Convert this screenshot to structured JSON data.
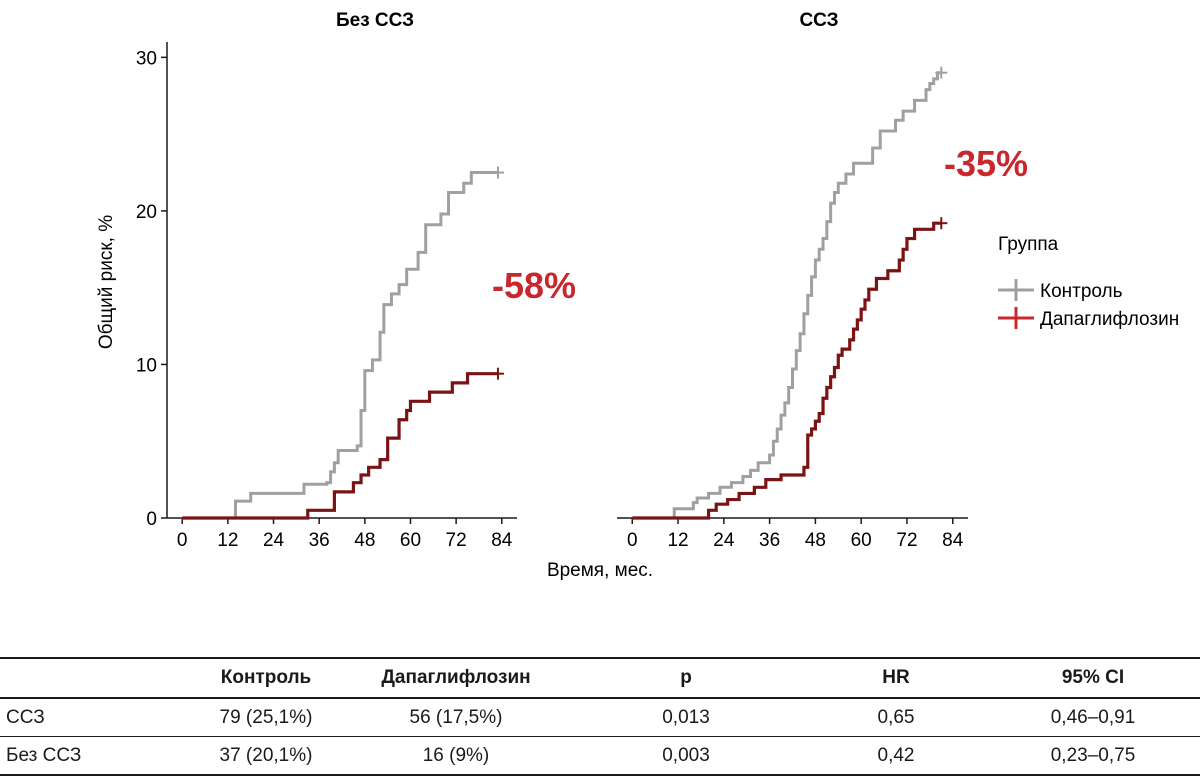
{
  "chart_data": {
    "type": "line",
    "subtype": "kaplan-meier step plot",
    "ylabel": "Общий риск, %",
    "xlabel": "Время, мес.",
    "ylim": [
      0,
      31
    ],
    "xlim": [
      -4,
      88
    ],
    "x_ticks": [
      0,
      12,
      24,
      36,
      48,
      60,
      72,
      84
    ],
    "y_ticks": [
      0,
      10,
      20,
      30
    ],
    "grid": false,
    "legend": {
      "title": "Группа",
      "position": "right",
      "entries": [
        {
          "label": "Контроль",
          "color": "#a0a0a0"
        },
        {
          "label": "Дапаглифлозин",
          "color": "#c8282d"
        }
      ]
    },
    "colors": {
      "control": "#a0a0a0",
      "treatment": "#7a1414",
      "annotation": "#c8282d"
    },
    "panels": [
      {
        "title": "Без ССЗ",
        "annotation": "-58%",
        "series": [
          {
            "name": "Контроль",
            "color": "#a0a0a0",
            "points": [
              [
                0,
                0
              ],
              [
                14,
                1.1
              ],
              [
                18,
                1.6
              ],
              [
                32,
                2.2
              ],
              [
                38,
                2.3
              ],
              [
                39,
                3.0
              ],
              [
                40,
                3.6
              ],
              [
                41,
                4.4
              ],
              [
                46,
                4.7
              ],
              [
                47,
                7.0
              ],
              [
                48,
                9.6
              ],
              [
                50,
                10.3
              ],
              [
                52,
                12.1
              ],
              [
                53,
                13.9
              ],
              [
                55,
                14.6
              ],
              [
                57,
                15.2
              ],
              [
                59,
                16.2
              ],
              [
                62,
                17.3
              ],
              [
                64,
                19.1
              ],
              [
                68,
                19.8
              ],
              [
                70,
                21.2
              ],
              [
                74,
                21.8
              ],
              [
                76,
                22.5
              ],
              [
                83,
                22.5
              ]
            ]
          },
          {
            "name": "Дапаглифлозин",
            "color": "#7a1414",
            "points": [
              [
                0,
                0
              ],
              [
                33,
                0.5
              ],
              [
                40,
                1.7
              ],
              [
                45,
                2.3
              ],
              [
                47,
                2.8
              ],
              [
                49,
                3.3
              ],
              [
                52,
                3.8
              ],
              [
                54,
                5.2
              ],
              [
                57,
                6.4
              ],
              [
                59,
                7.0
              ],
              [
                60,
                7.6
              ],
              [
                65,
                8.2
              ],
              [
                71,
                8.8
              ],
              [
                75,
                9.4
              ],
              [
                83,
                9.4
              ]
            ]
          }
        ]
      },
      {
        "title": "ССЗ",
        "annotation": "-35%",
        "series": [
          {
            "name": "Контроль",
            "color": "#a0a0a0",
            "points": [
              [
                0,
                0
              ],
              [
                11,
                0.6
              ],
              [
                16,
                1.0
              ],
              [
                17,
                1.3
              ],
              [
                20,
                1.6
              ],
              [
                23,
                2.0
              ],
              [
                26,
                2.3
              ],
              [
                29,
                2.7
              ],
              [
                31,
                3.1
              ],
              [
                33,
                3.6
              ],
              [
                36,
                4.1
              ],
              [
                37,
                5.0
              ],
              [
                38,
                5.8
              ],
              [
                39,
                6.7
              ],
              [
                40,
                7.5
              ],
              [
                41,
                8.5
              ],
              [
                42,
                9.7
              ],
              [
                43,
                10.9
              ],
              [
                44,
                12.0
              ],
              [
                45,
                13.3
              ],
              [
                46,
                14.5
              ],
              [
                47,
                15.7
              ],
              [
                48,
                16.8
              ],
              [
                49,
                17.5
              ],
              [
                50,
                18.2
              ],
              [
                51,
                19.3
              ],
              [
                52,
                20.5
              ],
              [
                53,
                21.2
              ],
              [
                54,
                21.8
              ],
              [
                56,
                22.4
              ],
              [
                58,
                23.1
              ],
              [
                63,
                24.1
              ],
              [
                65,
                25.2
              ],
              [
                69,
                25.9
              ],
              [
                71,
                26.5
              ],
              [
                74,
                27.2
              ],
              [
                77,
                27.9
              ],
              [
                78,
                28.3
              ],
              [
                79,
                28.6
              ],
              [
                80,
                29.0
              ],
              [
                81,
                29.0
              ]
            ]
          },
          {
            "name": "Дапаглифлозин",
            "color": "#7a1414",
            "points": [
              [
                0,
                0
              ],
              [
                20,
                0.5
              ],
              [
                22,
                0.9
              ],
              [
                25,
                1.2
              ],
              [
                28,
                1.6
              ],
              [
                32,
                2.0
              ],
              [
                35,
                2.5
              ],
              [
                39,
                2.8
              ],
              [
                45,
                3.3
              ],
              [
                46,
                5.4
              ],
              [
                47,
                5.8
              ],
              [
                48,
                6.3
              ],
              [
                49,
                6.8
              ],
              [
                50,
                7.8
              ],
              [
                51,
                8.5
              ],
              [
                52,
                9.2
              ],
              [
                53,
                9.8
              ],
              [
                54,
                10.6
              ],
              [
                55,
                11.0
              ],
              [
                57,
                11.6
              ],
              [
                58,
                12.3
              ],
              [
                59,
                12.9
              ],
              [
                60,
                13.6
              ],
              [
                61,
                14.2
              ],
              [
                62,
                14.9
              ],
              [
                64,
                15.6
              ],
              [
                67,
                16.1
              ],
              [
                70,
                16.8
              ],
              [
                71,
                17.5
              ],
              [
                72,
                18.2
              ],
              [
                74,
                18.8
              ],
              [
                79,
                19.2
              ],
              [
                81,
                19.2
              ]
            ]
          }
        ]
      }
    ]
  },
  "table": {
    "headers": [
      "",
      "Контроль",
      "Дапаглифлозин",
      "p",
      "HR",
      "95% CI"
    ],
    "rows": [
      [
        "ССЗ",
        "79 (25,1%)",
        "56 (17,5%)",
        "0,013",
        "0,65",
        "0,46–0,91"
      ],
      [
        "Без ССЗ",
        "37 (20,1%)",
        "16 (9%)",
        "0,003",
        "0,42",
        "0,23–0,75"
      ]
    ]
  }
}
